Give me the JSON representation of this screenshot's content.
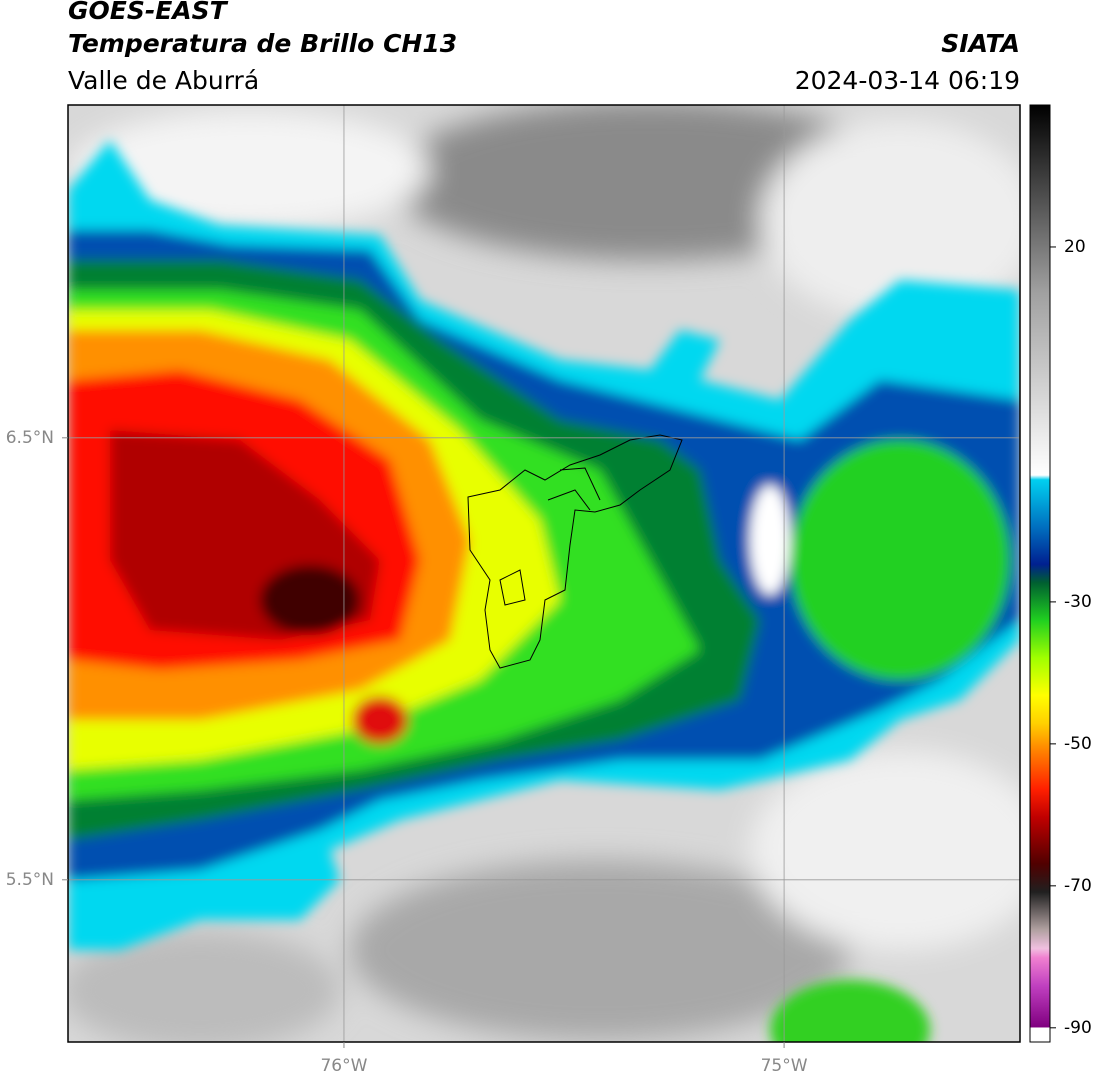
{
  "header": {
    "title": "GOES-EAST",
    "subtitle": "Temperatura de Brillo CH13",
    "region": "Valle de Aburrá",
    "source": "SIATA",
    "timestamp": "2024-03-14 06:19"
  },
  "map": {
    "xlim": [
      -76.627,
      -74.464
    ],
    "ylim": [
      5.133,
      7.253
    ],
    "xticks": [
      {
        "value": -76,
        "label": "76°W"
      },
      {
        "value": -75,
        "label": "75°W"
      }
    ],
    "yticks": [
      {
        "value": 6.5,
        "label": "6.5°N"
      },
      {
        "value": 5.5,
        "label": "5.5°N"
      }
    ],
    "grid": true
  },
  "colorbar": {
    "lim": [
      -92,
      40
    ],
    "ticks": [
      20,
      -30,
      -50,
      -70,
      -90
    ]
  }
}
